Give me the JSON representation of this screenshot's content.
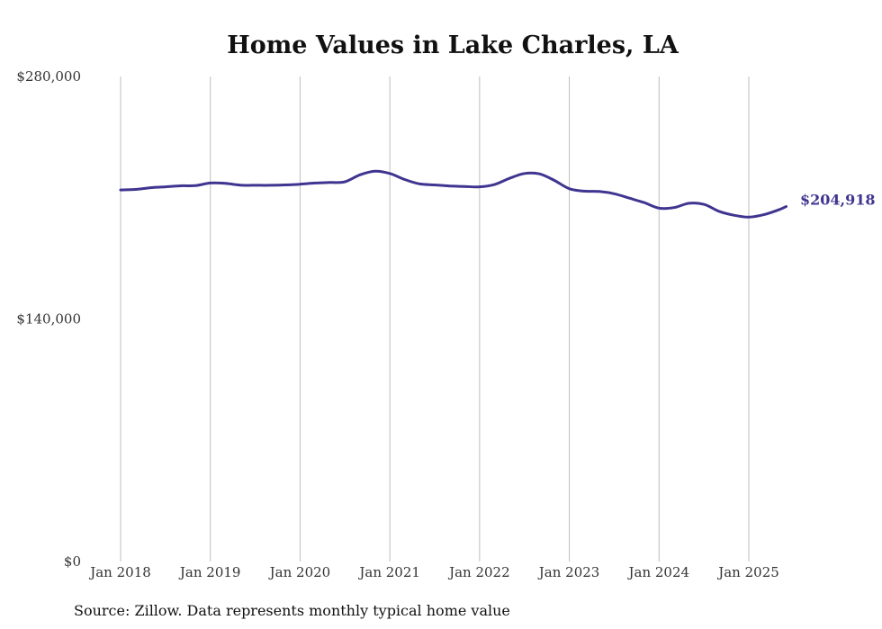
{
  "chart_data": {
    "type": "line",
    "title": "Home Values in Lake Charles, LA",
    "xlabel": "",
    "ylabel": "",
    "ylim": [
      0,
      280000
    ],
    "y_ticks": [
      {
        "value": 0,
        "label": "$0"
      },
      {
        "value": 140000,
        "label": "$140,000"
      },
      {
        "value": 280000,
        "label": "$280,000"
      }
    ],
    "x_ticks": [
      {
        "value": "2018-01",
        "label": "Jan 2018"
      },
      {
        "value": "2019-01",
        "label": "Jan 2019"
      },
      {
        "value": "2020-01",
        "label": "Jan 2020"
      },
      {
        "value": "2021-01",
        "label": "Jan 2021"
      },
      {
        "value": "2022-01",
        "label": "Jan 2022"
      },
      {
        "value": "2023-01",
        "label": "Jan 2023"
      },
      {
        "value": "2024-01",
        "label": "Jan 2024"
      },
      {
        "value": "2025-01",
        "label": "Jan 2025"
      }
    ],
    "grid": "vertical",
    "series": [
      {
        "color": "#3f3590",
        "end_label": "$204,918",
        "x": [
          "2018-01",
          "2018-03",
          "2018-05",
          "2018-07",
          "2018-09",
          "2018-11",
          "2019-01",
          "2019-03",
          "2019-05",
          "2019-07",
          "2019-09",
          "2019-11",
          "2020-01",
          "2020-03",
          "2020-05",
          "2020-07",
          "2020-09",
          "2020-11",
          "2021-01",
          "2021-03",
          "2021-05",
          "2021-07",
          "2021-09",
          "2021-11",
          "2022-01",
          "2022-03",
          "2022-05",
          "2022-07",
          "2022-09",
          "2022-11",
          "2023-01",
          "2023-03",
          "2023-05",
          "2023-07",
          "2023-09",
          "2023-11",
          "2024-01",
          "2024-03",
          "2024-05",
          "2024-07",
          "2024-09",
          "2024-11",
          "2025-01",
          "2025-03",
          "2025-05",
          "2025-06"
        ],
        "values": [
          214500,
          214800,
          215800,
          216300,
          216900,
          217000,
          218500,
          218300,
          217300,
          217200,
          217200,
          217400,
          217800,
          218500,
          218800,
          219200,
          223200,
          225300,
          224000,
          220500,
          218000,
          217400,
          216800,
          216500,
          216300,
          217600,
          221200,
          224000,
          223800,
          220000,
          215200,
          213800,
          213600,
          212300,
          209800,
          207200,
          204000,
          204300,
          206800,
          206200,
          202200,
          199900,
          198800,
          200200,
          203000,
          204918
        ]
      }
    ]
  },
  "source_note": "Source: Zillow. Data represents monthly typical home value"
}
